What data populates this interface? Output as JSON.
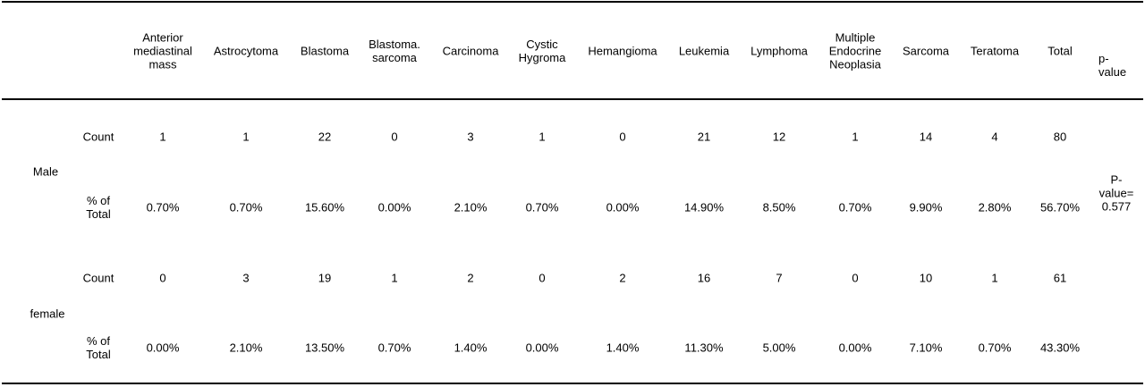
{
  "headers": [
    "Anterior\nmediastinal\nmass",
    "Astrocytoma",
    "Blastoma",
    "Blastoma.\nsarcoma",
    "Carcinoma",
    "Cystic\nHygroma",
    "Hemangioma",
    "Leukemia",
    "Lymphoma",
    "Multiple\nEndocrine\nNeoplasia",
    "Sarcoma",
    "Teratoma",
    "Total",
    "p-\nvalue"
  ],
  "groups": [
    {
      "label": "Male",
      "rows": [
        {
          "label": "Count",
          "values": [
            "1",
            "1",
            "22",
            "0",
            "3",
            "1",
            "0",
            "21",
            "12",
            "1",
            "14",
            "4",
            "80"
          ]
        },
        {
          "label": "% of\nTotal",
          "values": [
            "0.70%",
            "0.70%",
            "15.60%",
            "0.00%",
            "2.10%",
            "0.70%",
            "0.00%",
            "14.90%",
            "8.50%",
            "0.70%",
            "9.90%",
            "2.80%",
            "56.70%"
          ]
        }
      ]
    },
    {
      "label": "female",
      "rows": [
        {
          "label": "Count",
          "values": [
            "0",
            "3",
            "19",
            "1",
            "2",
            "0",
            "2",
            "16",
            "7",
            "0",
            "10",
            "1",
            "61"
          ]
        },
        {
          "label": "% of\nTotal",
          "values": [
            "0.00%",
            "2.10%",
            "13.50%",
            "0.70%",
            "1.40%",
            "0.00%",
            "1.40%",
            "11.30%",
            "5.00%",
            "0.00%",
            "7.10%",
            "0.70%",
            "43.30%"
          ]
        }
      ]
    }
  ],
  "pvalue": "P-\nvalue=\n0.577"
}
